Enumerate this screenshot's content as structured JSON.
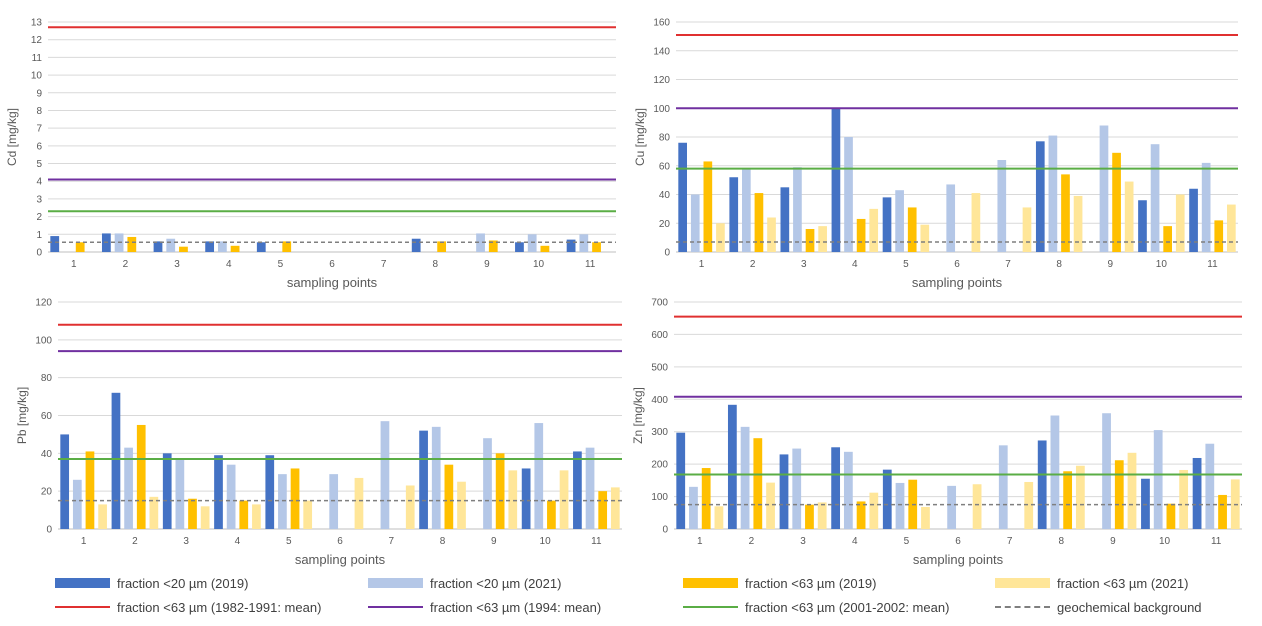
{
  "chart_data": [
    {
      "type": "bar",
      "panel": "Cd",
      "ylabel": "Cd [mg/kg]",
      "xlabel": "sampling points",
      "ylim": [
        0,
        13
      ],
      "yticks": [
        0,
        1,
        2,
        3,
        4,
        5,
        6,
        7,
        8,
        9,
        10,
        11,
        12,
        13
      ],
      "categories": [
        "1",
        "2",
        "3",
        "4",
        "5",
        "6",
        "7",
        "8",
        "9",
        "10",
        "11"
      ],
      "series": [
        {
          "name": "fraction <20 µm (2019)",
          "values": [
            0.9,
            1.05,
            0.6,
            0.6,
            0.55,
            null,
            null,
            0.75,
            null,
            0.55,
            0.7
          ]
        },
        {
          "name": "fraction <20 µm (2021)",
          "values": [
            null,
            1.05,
            0.75,
            0.6,
            null,
            null,
            null,
            null,
            1.05,
            1.0,
            1.0
          ]
        },
        {
          "name": "fraction <63 µm (2019)",
          "values": [
            0.55,
            0.85,
            0.3,
            0.35,
            0.6,
            null,
            null,
            0.6,
            0.65,
            0.35,
            0.55
          ]
        },
        {
          "name": "fraction <63 µm (2021)",
          "values": [
            null,
            null,
            null,
            null,
            null,
            null,
            null,
            null,
            null,
            null,
            null
          ]
        }
      ],
      "reference_lines": {
        "mean_1982_1991": 12.7,
        "mean_1994": 4.1,
        "mean_2001_2002": 2.3,
        "geochemical_background": 0.55
      }
    },
    {
      "type": "bar",
      "panel": "Cu",
      "ylabel": "Cu [mg/kg]",
      "xlabel": "sampling points",
      "ylim": [
        0,
        160
      ],
      "yticks": [
        0,
        20,
        40,
        60,
        80,
        100,
        120,
        140,
        160
      ],
      "categories": [
        "1",
        "2",
        "3",
        "4",
        "5",
        "6",
        "7",
        "8",
        "9",
        "10",
        "11"
      ],
      "series": [
        {
          "name": "fraction <20 µm (2019)",
          "values": [
            76,
            52,
            45,
            100,
            38,
            null,
            null,
            77,
            null,
            36,
            44
          ]
        },
        {
          "name": "fraction <20 µm (2021)",
          "values": [
            40,
            58,
            59,
            80,
            43,
            47,
            64,
            81,
            88,
            75,
            62
          ]
        },
        {
          "name": "fraction <63 µm (2019)",
          "values": [
            63,
            41,
            16,
            23,
            31,
            null,
            null,
            54,
            69,
            18,
            22
          ]
        },
        {
          "name": "fraction <63 µm (2021)",
          "values": [
            20,
            24,
            18,
            30,
            19,
            41,
            31,
            39,
            49,
            40,
            33
          ]
        }
      ],
      "reference_lines": {
        "mean_1982_1991": 151,
        "mean_1994": 100,
        "mean_2001_2002": 58,
        "geochemical_background": 7
      }
    },
    {
      "type": "bar",
      "panel": "Pb",
      "ylabel": "Pb [mg/kg]",
      "xlabel": "sampling points",
      "ylim": [
        0,
        120
      ],
      "yticks": [
        0,
        20,
        40,
        60,
        80,
        100,
        120
      ],
      "categories": [
        "1",
        "2",
        "3",
        "4",
        "5",
        "6",
        "7",
        "8",
        "9",
        "10",
        "11"
      ],
      "series": [
        {
          "name": "fraction <20 µm (2019)",
          "values": [
            50,
            72,
            40,
            39,
            39,
            null,
            null,
            52,
            null,
            32,
            41
          ]
        },
        {
          "name": "fraction <20 µm (2021)",
          "values": [
            26,
            43,
            37,
            34,
            29,
            29,
            57,
            54,
            48,
            56,
            43
          ]
        },
        {
          "name": "fraction <63 µm (2019)",
          "values": [
            41,
            55,
            16,
            15,
            32,
            null,
            null,
            34,
            40,
            15,
            20
          ]
        },
        {
          "name": "fraction <63 µm (2021)",
          "values": [
            13,
            17,
            12,
            13,
            15,
            27,
            23,
            25,
            31,
            31,
            22
          ]
        }
      ],
      "reference_lines": {
        "mean_1982_1991": 108,
        "mean_1994": 94,
        "mean_2001_2002": 37,
        "geochemical_background": 15
      }
    },
    {
      "type": "bar",
      "panel": "Zn",
      "ylabel": "Zn [mg/kg]",
      "xlabel": "sampling points",
      "ylim": [
        0,
        700
      ],
      "yticks": [
        0,
        100,
        200,
        300,
        400,
        500,
        600,
        700
      ],
      "categories": [
        "1",
        "2",
        "3",
        "4",
        "5",
        "6",
        "7",
        "8",
        "9",
        "10",
        "11"
      ],
      "series": [
        {
          "name": "fraction <20 µm (2019)",
          "values": [
            297,
            383,
            230,
            252,
            183,
            null,
            null,
            273,
            null,
            155,
            219
          ]
        },
        {
          "name": "fraction <20 µm (2021)",
          "values": [
            130,
            315,
            248,
            238,
            142,
            133,
            258,
            350,
            357,
            305,
            263
          ]
        },
        {
          "name": "fraction <63 µm (2019)",
          "values": [
            188,
            280,
            75,
            85,
            152,
            null,
            null,
            178,
            212,
            78,
            105
          ]
        },
        {
          "name": "fraction <63 µm (2021)",
          "values": [
            70,
            143,
            82,
            112,
            68,
            138,
            145,
            195,
            235,
            182,
            153
          ]
        }
      ],
      "reference_lines": {
        "mean_1982_1991": 655,
        "mean_1994": 408,
        "mean_2001_2002": 168,
        "geochemical_background": 75
      }
    }
  ],
  "colors": {
    "s20_2019": "#4472c4",
    "s20_2021": "#b4c7e7",
    "s63_2019": "#ffc000",
    "s63_2021": "#ffe699",
    "mean_1982_1991": "#e03030",
    "mean_1994": "#7030a0",
    "mean_2001_2002": "#5aad45",
    "background": "#7f7f7f",
    "grid": "#d9d9d9",
    "axis": "#bfbfbf"
  },
  "legend": {
    "s20_2019": "fraction <20 µm (2019)",
    "s20_2021": "fraction <20 µm (2021)",
    "s63_2019": "fraction <63 µm (2019)",
    "s63_2021": "fraction <63 µm (2021)",
    "mean_1982_1991": "fraction <63 µm (1982-1991: mean)",
    "mean_1994": "fraction <63 µm (1994: mean)",
    "mean_2001_2002": "fraction <63 µm (2001-2002: mean)",
    "background": "geochemical background"
  }
}
